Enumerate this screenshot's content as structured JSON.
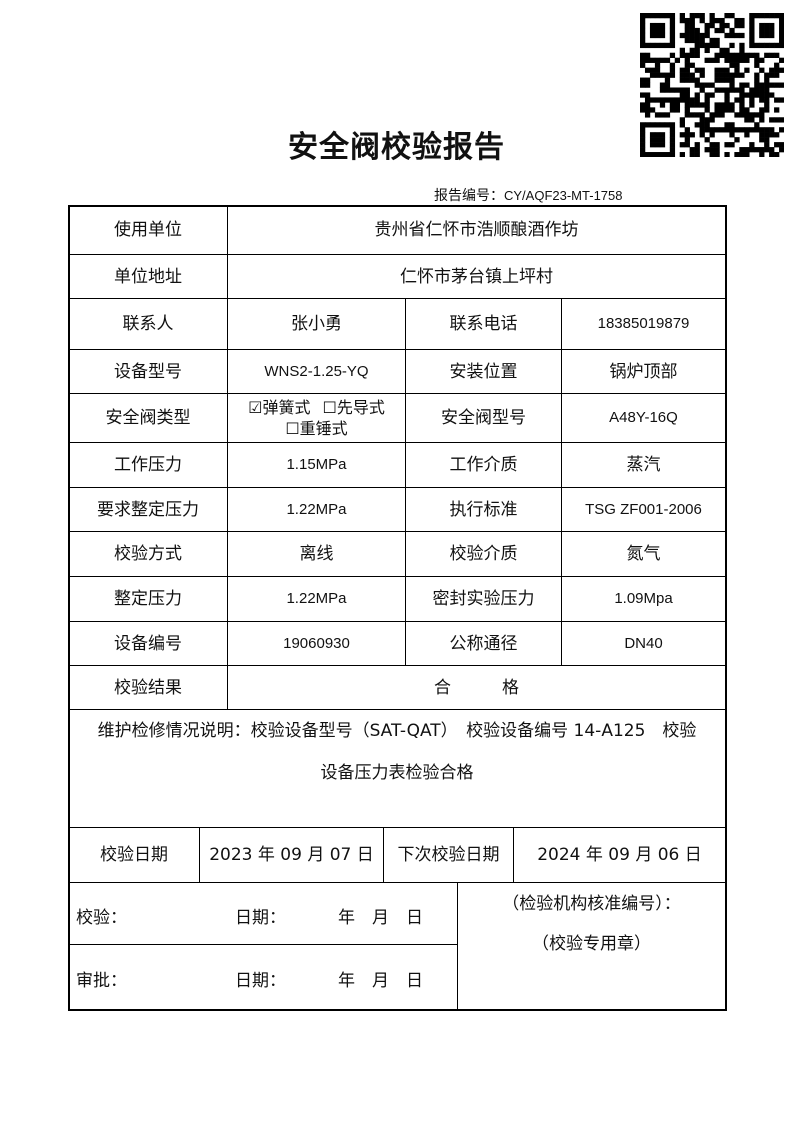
{
  "title": "安全阀校验报告",
  "report_no_label": "报告编号：",
  "report_no": "CY/AQF23-MT-1758",
  "qr_icon": "qr-code",
  "rows": {
    "user_unit_label": "使用单位",
    "user_unit": "贵州省仁怀市浩顺酿酒作坊",
    "address_label": "单位地址",
    "address": "仁怀市茅台镇上坪村",
    "contact_label": "联系人",
    "contact": "张小勇",
    "phone_label": "联系电话",
    "phone": "18385019879",
    "model_label": "设备型号",
    "model": "WNS2-1.25-YQ",
    "location_label": "安装位置",
    "location": "锅炉顶部",
    "valve_type_label": "安全阀类型",
    "valve_type_options": [
      "☑弹簧式",
      "☐先导式",
      "☐重锤式"
    ],
    "valve_model_label": "安全阀型号",
    "valve_model": "A48Y-16Q",
    "work_pressure_label": "工作压力",
    "work_pressure": "1.15MPa",
    "medium_label": "工作介质",
    "medium": "蒸汽",
    "req_set_pressure_label": "要求整定压力",
    "req_set_pressure": "1.22MPa",
    "standard_label": "执行标准",
    "standard": "TSG ZF001-2006",
    "method_label": "校验方式",
    "method": "离线",
    "test_medium_label": "校验介质",
    "test_medium": "氮气",
    "set_pressure_label": "整定压力",
    "set_pressure": "1.22MPa",
    "seal_pressure_label": "密封实验压力",
    "seal_pressure": "1.09Mpa",
    "equip_no_label": "设备编号",
    "equip_no": "19060930",
    "nominal_label": "公称通径",
    "nominal": "DN40",
    "result_label": "校验结果",
    "result": "合　　　格"
  },
  "notes_line1": "维护检修情况说明：校验设备型号（SAT-QAT）　校验设备编号 14-A125　校验",
  "notes_line2": "设备压力表检验合格",
  "date_label": "校验日期",
  "date": "2023 年 09 月 07 日",
  "next_date_label": "下次校验日期",
  "next_date": "2024 年 09 月 06 日",
  "sign": {
    "check_label": "校验：",
    "approve_label": "审批：",
    "date_label": "日期：",
    "ymd": "年　月　日",
    "org_no": "（检验机构核准编号）：",
    "seal": "（校验专用章）"
  }
}
